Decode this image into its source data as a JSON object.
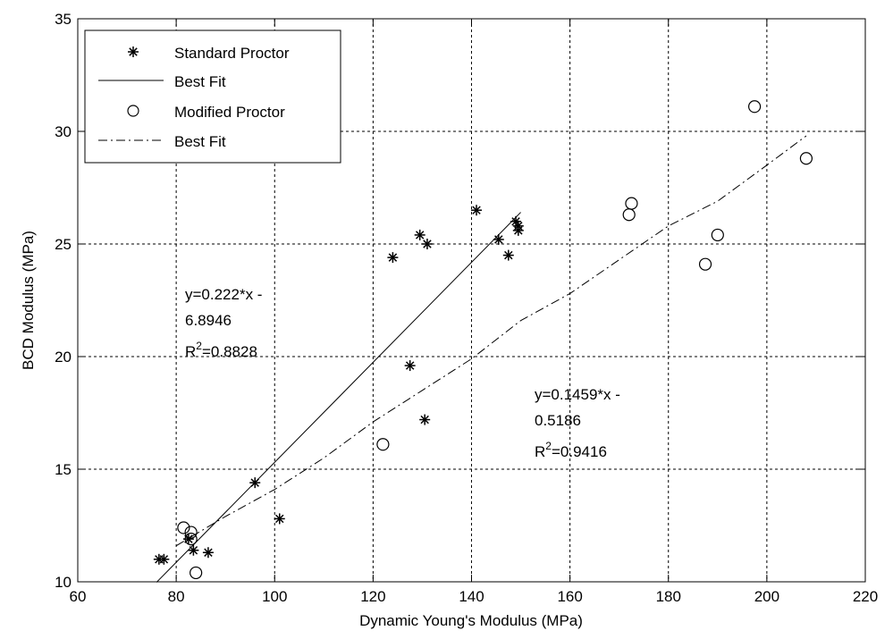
{
  "chart_data": {
    "type": "scatter",
    "title": "",
    "xlabel": "Dynamic Young's Modulus (MPa)",
    "ylabel": "BCD Modulus (MPa)",
    "xlim": [
      60,
      220
    ],
    "ylim": [
      10,
      35
    ],
    "xticks": [
      "60",
      "80",
      "100",
      "120",
      "140",
      "160",
      "180",
      "200",
      "220"
    ],
    "yticks": [
      "10",
      "15",
      "20",
      "25",
      "30",
      "35"
    ],
    "grid": true,
    "legend_position": "top-left",
    "legend": [
      {
        "label": "Standard Proctor",
        "marker": "star"
      },
      {
        "label": "Best Fit",
        "line": "solid"
      },
      {
        "label": "Modified Proctor",
        "marker": "circle"
      },
      {
        "label": "Best Fit",
        "line": "dash-dot"
      }
    ],
    "series": [
      {
        "name": "Standard Proctor",
        "marker": "star",
        "points": [
          [
            76.5,
            11.0
          ],
          [
            77.5,
            11.0
          ],
          [
            82.5,
            11.9
          ],
          [
            83.5,
            11.4
          ],
          [
            86.5,
            11.3
          ],
          [
            96.0,
            14.4
          ],
          [
            101.0,
            12.8
          ],
          [
            124.0,
            24.4
          ],
          [
            127.5,
            19.6
          ],
          [
            129.5,
            25.4
          ],
          [
            130.5,
            17.2
          ],
          [
            131.0,
            25.0
          ],
          [
            141.0,
            26.5
          ],
          [
            145.5,
            25.2
          ],
          [
            147.5,
            24.5
          ],
          [
            149.0,
            26.0
          ],
          [
            149.5,
            25.8
          ],
          [
            149.5,
            25.6
          ]
        ]
      },
      {
        "name": "Best Fit",
        "line": "solid",
        "fit": {
          "slope": 0.222,
          "intercept": -6.8946,
          "x_range": [
            76,
            150
          ]
        }
      },
      {
        "name": "Modified Proctor",
        "marker": "circle",
        "points": [
          [
            81.5,
            12.4
          ],
          [
            83.0,
            12.2
          ],
          [
            83.0,
            11.9
          ],
          [
            84.0,
            10.4
          ],
          [
            122.0,
            16.1
          ],
          [
            172.0,
            26.3
          ],
          [
            172.5,
            26.8
          ],
          [
            187.5,
            24.1
          ],
          [
            190.0,
            25.4
          ],
          [
            197.5,
            31.1
          ],
          [
            208.0,
            28.8
          ]
        ]
      },
      {
        "name": "Best Fit",
        "line": "dash-dot",
        "curve": [
          [
            80,
            11.6
          ],
          [
            90,
            12.9
          ],
          [
            100,
            14.1
          ],
          [
            110,
            15.5
          ],
          [
            120,
            17.1
          ],
          [
            130,
            18.5
          ],
          [
            140,
            19.9
          ],
          [
            150,
            21.6
          ],
          [
            160,
            22.8
          ],
          [
            170,
            24.3
          ],
          [
            180,
            25.8
          ],
          [
            190,
            26.9
          ],
          [
            200,
            28.5
          ],
          [
            208,
            29.8
          ]
        ]
      }
    ],
    "annotations": [
      {
        "lines": [
          "y=0.222*x -",
          "6.8946",
          "R2=0.8828"
        ],
        "r2_label": "R",
        "r2_sup": "2",
        "r2_value": "=0.8828"
      },
      {
        "lines": [
          "y=0.1459*x -",
          "0.5186",
          "R2=0.9416"
        ],
        "r2_label": "R",
        "r2_sup": "2",
        "r2_value": "=0.9416"
      }
    ],
    "annotation_text": {
      "a1_line1": "y=0.222*x -",
      "a1_line2": "6.8946",
      "a2_line1": "y=0.1459*x -",
      "a2_line2": "0.5186"
    }
  }
}
